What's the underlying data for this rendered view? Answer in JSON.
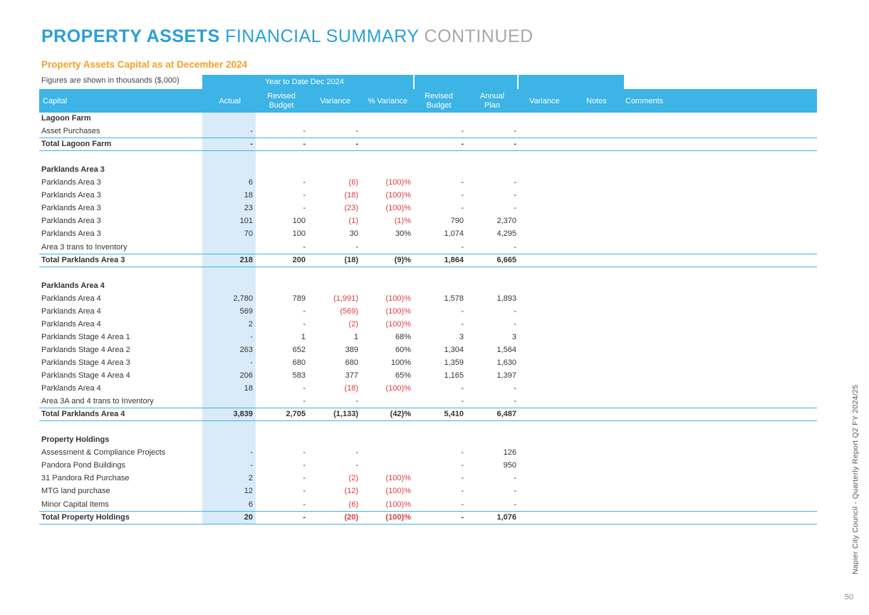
{
  "title": {
    "bold": "PROPERTY ASSETS",
    "light": "FINANCIAL SUMMARY",
    "grey": "CONTINUED"
  },
  "subtitle": "Property Assets Capital as at December 2024",
  "figures_note": "Figures are shown in thousands ($,000)",
  "ytd_label": "Year to Date  Dec 2024",
  "headers": {
    "capital": "Capital",
    "actual": "Actual",
    "revised_budget": "Revised Budget",
    "variance": "Variance",
    "pct_variance": "% Variance",
    "revised_budget_annual": "Revised Budget",
    "annual_plan": "Annual Plan",
    "variance2": "Variance",
    "notes": "Notes",
    "comments": "Comments"
  },
  "colors": {
    "accent": "#3cb4e6",
    "title": "#2a9fd8",
    "subtitle": "#f4a125",
    "negative": "#e03a3a",
    "actual_shade": "#d9ebf8"
  },
  "rows": [
    {
      "type": "group",
      "label": "Lagoon Farm"
    },
    {
      "type": "item",
      "label": "Asset Purchases",
      "actual": "-",
      "rb": "-",
      "var": "-",
      "pct": "",
      "rb2": "-",
      "ap": "-"
    },
    {
      "type": "total",
      "label": "Total Lagoon Farm",
      "actual": "-",
      "rb": "-",
      "var": "-",
      "pct": "",
      "rb2": "-",
      "ap": "-"
    },
    {
      "type": "blank"
    },
    {
      "type": "group",
      "label": "Parklands Area 3"
    },
    {
      "type": "item",
      "label": "Parklands Area 3",
      "actual": "6",
      "rb": "-",
      "var": "(6)",
      "pct": "(100)%",
      "rb2": "-",
      "ap": "-",
      "neg": true
    },
    {
      "type": "item",
      "label": "Parklands Area 3",
      "actual": "18",
      "rb": "-",
      "var": "(18)",
      "pct": "(100)%",
      "rb2": "-",
      "ap": "-",
      "neg": true
    },
    {
      "type": "item",
      "label": "Parklands Area 3",
      "actual": "23",
      "rb": "-",
      "var": "(23)",
      "pct": "(100)%",
      "rb2": "-",
      "ap": "-",
      "neg": true
    },
    {
      "type": "item",
      "label": "Parklands Area 3",
      "actual": "101",
      "rb": "100",
      "var": "(1)",
      "pct": "(1)%",
      "rb2": "790",
      "ap": "2,370",
      "neg": true
    },
    {
      "type": "item",
      "label": "Parklands Area 3",
      "actual": "70",
      "rb": "100",
      "var": "30",
      "pct": "30%",
      "rb2": "1,074",
      "ap": "4,295"
    },
    {
      "type": "item",
      "label": "Area 3 trans to Inventory",
      "actual": "",
      "rb": "-",
      "var": "-",
      "pct": "",
      "rb2": "-",
      "ap": "-"
    },
    {
      "type": "total",
      "label": "Total Parklands Area 3",
      "actual": "218",
      "rb": "200",
      "var": "(18)",
      "pct": "(9)%",
      "rb2": "1,864",
      "ap": "6,665"
    },
    {
      "type": "blank"
    },
    {
      "type": "group",
      "label": "Parklands Area 4"
    },
    {
      "type": "item",
      "label": "Parklands Area 4",
      "actual": "2,780",
      "rb": "789",
      "var": "(1,991)",
      "pct": "(100)%",
      "rb2": "1,578",
      "ap": "1,893",
      "neg": true
    },
    {
      "type": "item",
      "label": "Parklands Area 4",
      "actual": "569",
      "rb": "-",
      "var": "(569)",
      "pct": "(100)%",
      "rb2": "-",
      "ap": "-",
      "neg": true
    },
    {
      "type": "item",
      "label": "Parklands Area 4",
      "actual": "2",
      "rb": "-",
      "var": "(2)",
      "pct": "(100)%",
      "rb2": "-",
      "ap": "-",
      "neg": true
    },
    {
      "type": "item",
      "label": "Parklands Stage 4 Area 1",
      "actual": "-",
      "rb": "1",
      "var": "1",
      "pct": "68%",
      "rb2": "3",
      "ap": "3"
    },
    {
      "type": "item",
      "label": "Parklands Stage 4 Area 2",
      "actual": "263",
      "rb": "652",
      "var": "389",
      "pct": "60%",
      "rb2": "1,304",
      "ap": "1,564"
    },
    {
      "type": "item",
      "label": "Parklands Stage 4 Area 3",
      "actual": "-",
      "rb": "680",
      "var": "680",
      "pct": "100%",
      "rb2": "1,359",
      "ap": "1,630"
    },
    {
      "type": "item",
      "label": "Parklands Stage 4 Area 4",
      "actual": "206",
      "rb": "583",
      "var": "377",
      "pct": "65%",
      "rb2": "1,165",
      "ap": "1,397"
    },
    {
      "type": "item",
      "label": "Parklands Area 4",
      "actual": "18",
      "rb": "-",
      "var": "(18)",
      "pct": "(100)%",
      "rb2": "-",
      "ap": "-",
      "neg": true
    },
    {
      "type": "item",
      "label": "Area 3A and 4 trans to Inventory",
      "actual": "",
      "rb": "-",
      "var": "-",
      "pct": "",
      "rb2": "-",
      "ap": "-"
    },
    {
      "type": "total",
      "label": "Total Parklands Area 4",
      "actual": "3,839",
      "rb": "2,705",
      "var": "(1,133)",
      "pct": "(42)%",
      "rb2": "5,410",
      "ap": "6,487"
    },
    {
      "type": "blank"
    },
    {
      "type": "group",
      "label": "Property Holdings"
    },
    {
      "type": "item",
      "label": "Assessment & Compliance Projects",
      "actual": "-",
      "rb": "-",
      "var": "-",
      "pct": "",
      "rb2": "-",
      "ap": "126"
    },
    {
      "type": "item",
      "label": "Pandora Pond Buildings",
      "actual": "-",
      "rb": "-",
      "var": "-",
      "pct": "",
      "rb2": "-",
      "ap": "950"
    },
    {
      "type": "item",
      "label": "31 Pandora Rd Purchase",
      "actual": "2",
      "rb": "-",
      "var": "(2)",
      "pct": "(100)%",
      "rb2": "-",
      "ap": "-",
      "neg": true
    },
    {
      "type": "item",
      "label": "MTG land purchase",
      "actual": "12",
      "rb": "-",
      "var": "(12)",
      "pct": "(100)%",
      "rb2": "-",
      "ap": "-",
      "neg": true
    },
    {
      "type": "item",
      "label": "Minor Capital Items",
      "actual": "6",
      "rb": "-",
      "var": "(6)",
      "pct": "(100)%",
      "rb2": "-",
      "ap": "-",
      "neg": true
    },
    {
      "type": "total",
      "label": "Total Property Holdings",
      "actual": "20",
      "rb": "-",
      "var": "(20)",
      "pct": "(100)%",
      "rb2": "-",
      "ap": "1,076",
      "neg": true
    }
  ],
  "side_text": "Napier City Council - Quarterly Report Q2 FY 2024/25",
  "page_number": "50"
}
